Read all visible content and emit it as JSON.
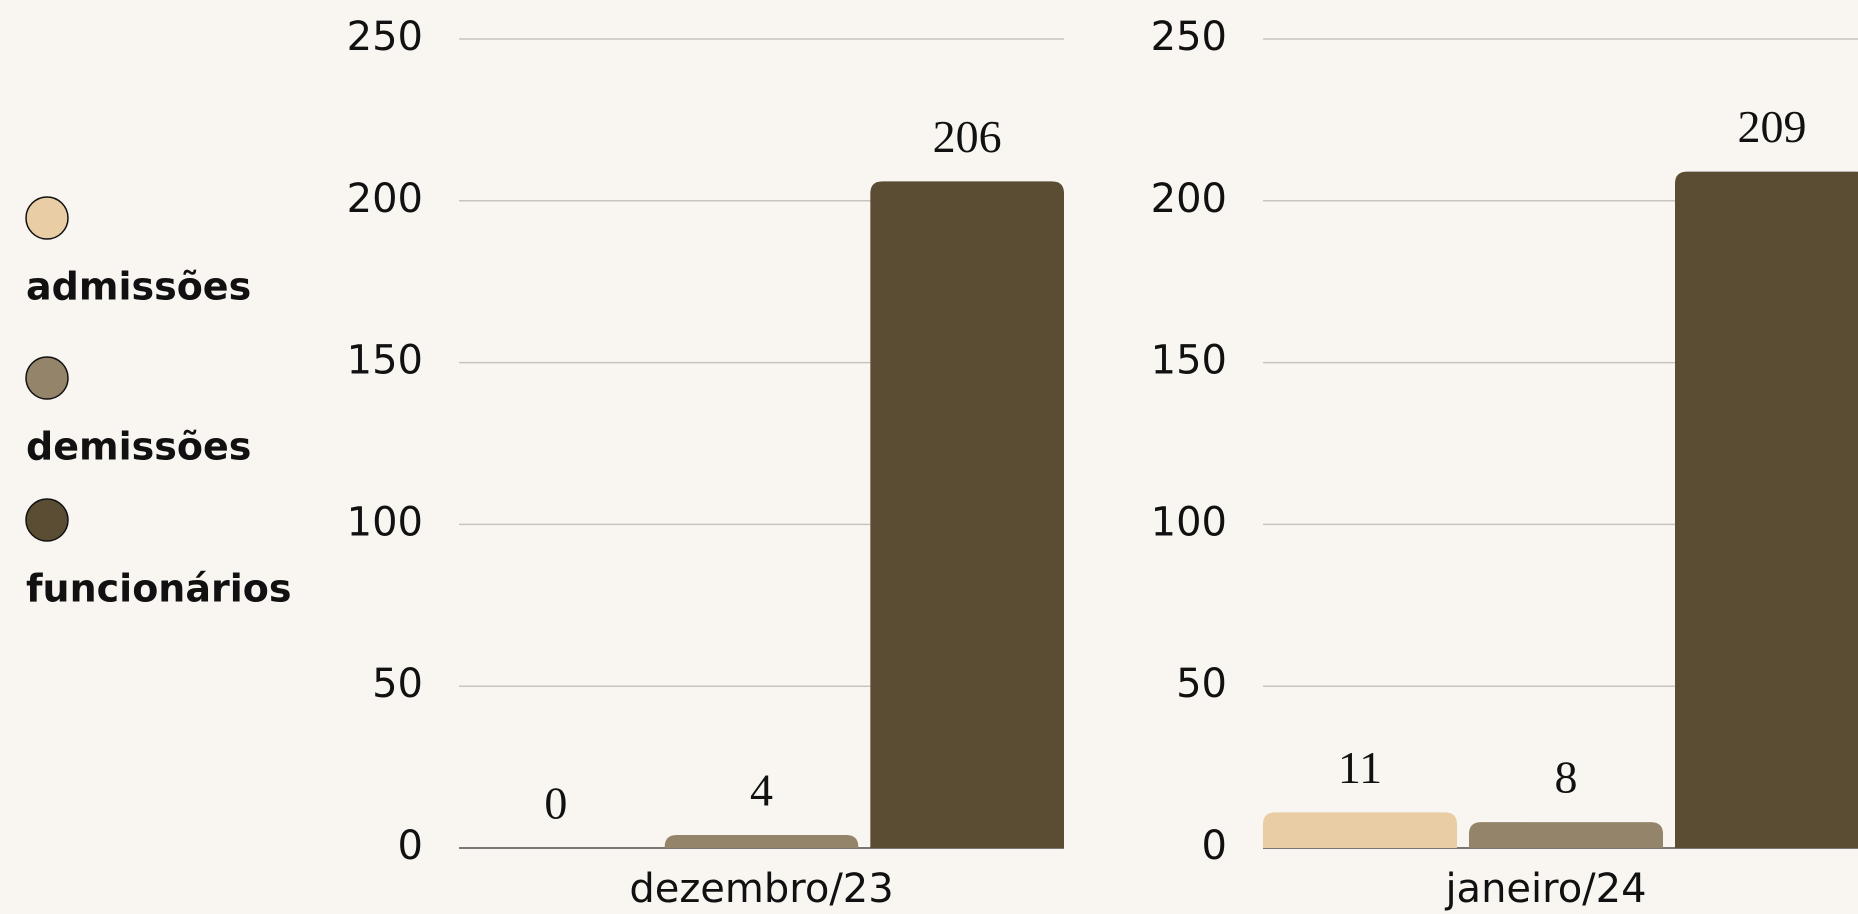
{
  "chart_data": {
    "type": "bar",
    "categories": [
      "dezembro/23",
      "janeiro/24"
    ],
    "series": [
      {
        "name": "admissões",
        "color": "#e8cda5",
        "values": [
          0,
          11
        ]
      },
      {
        "name": "demissões",
        "color": "#948469",
        "values": [
          4,
          8
        ]
      },
      {
        "name": "funcionários",
        "color": "#5b4d33",
        "values": [
          206,
          209
        ]
      }
    ],
    "ylim": [
      0,
      250
    ],
    "yticks": [
      0,
      50,
      100,
      150,
      200,
      250
    ],
    "grid": true,
    "legend": "left"
  }
}
